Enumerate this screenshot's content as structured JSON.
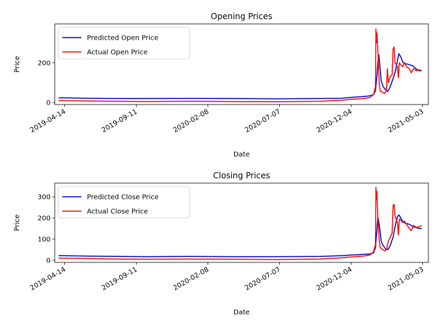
{
  "chart_data": [
    {
      "type": "line",
      "title": "Opening Prices",
      "xlabel": "Date",
      "ylabel": "Price",
      "x_ticks": [
        "2019-04-14",
        "2019-09-11",
        "2020-02-08",
        "2020-07-07",
        "2020-12-04",
        "2021-05-03"
      ],
      "y_ticks": [
        0,
        200
      ],
      "xlim": [
        "2019-03-24",
        "2021-05-15"
      ],
      "ylim": [
        -10,
        395
      ],
      "legend": "upper-left",
      "grid": false,
      "series": [
        {
          "name": "Predicted Open Price",
          "color": "#0000cc",
          "points": [
            [
              "2019-04-01",
              24
            ],
            [
              "2019-06-01",
              22
            ],
            [
              "2019-08-01",
              20
            ],
            [
              "2019-10-01",
              20
            ],
            [
              "2020-01-01",
              21
            ],
            [
              "2020-04-01",
              20
            ],
            [
              "2020-07-01",
              19
            ],
            [
              "2020-10-01",
              20
            ],
            [
              "2020-11-15",
              22
            ],
            [
              "2020-12-04",
              26
            ],
            [
              "2020-12-30",
              30
            ],
            [
              "2021-01-12",
              34
            ],
            [
              "2021-01-20",
              40
            ],
            [
              "2021-01-24",
              60
            ],
            [
              "2021-01-27",
              130
            ],
            [
              "2021-01-29",
              200
            ],
            [
              "2021-01-31",
              240
            ],
            [
              "2021-02-02",
              190
            ],
            [
              "2021-02-05",
              110
            ],
            [
              "2021-02-09",
              80
            ],
            [
              "2021-02-14",
              65
            ],
            [
              "2021-02-19",
              55
            ],
            [
              "2021-02-24",
              80
            ],
            [
              "2021-03-02",
              120
            ],
            [
              "2021-03-07",
              160
            ],
            [
              "2021-03-11",
              210
            ],
            [
              "2021-03-14",
              245
            ],
            [
              "2021-03-18",
              230
            ],
            [
              "2021-03-23",
              200
            ],
            [
              "2021-03-29",
              195
            ],
            [
              "2021-04-05",
              190
            ],
            [
              "2021-04-12",
              185
            ],
            [
              "2021-04-19",
              170
            ],
            [
              "2021-04-26",
              160
            ],
            [
              "2021-05-01",
              160
            ]
          ]
        },
        {
          "name": "Actual Open Price",
          "color": "#ff0000",
          "points": [
            [
              "2019-04-01",
              10
            ],
            [
              "2019-06-01",
              8
            ],
            [
              "2019-08-01",
              6
            ],
            [
              "2019-10-01",
              5
            ],
            [
              "2020-01-01",
              6
            ],
            [
              "2020-04-01",
              5
            ],
            [
              "2020-07-01",
              4
            ],
            [
              "2020-10-01",
              6
            ],
            [
              "2020-11-15",
              12
            ],
            [
              "2020-12-04",
              16
            ],
            [
              "2020-12-30",
              20
            ],
            [
              "2021-01-12",
              25
            ],
            [
              "2021-01-20",
              40
            ],
            [
              "2021-01-24",
              80
            ],
            [
              "2021-01-25",
              370
            ],
            [
              "2021-01-26",
              300
            ],
            [
              "2021-01-27",
              350
            ],
            [
              "2021-01-29",
              260
            ],
            [
              "2021-02-01",
              90
            ],
            [
              "2021-02-03",
              60
            ],
            [
              "2021-02-05",
              55
            ],
            [
              "2021-02-09",
              50
            ],
            [
              "2021-02-12",
              45
            ],
            [
              "2021-02-16",
              60
            ],
            [
              "2021-02-18",
              170
            ],
            [
              "2021-02-20",
              100
            ],
            [
              "2021-02-24",
              130
            ],
            [
              "2021-02-28",
              140
            ],
            [
              "2021-03-02",
              270
            ],
            [
              "2021-03-04",
              280
            ],
            [
              "2021-03-06",
              200
            ],
            [
              "2021-03-09",
              190
            ],
            [
              "2021-03-11",
              180
            ],
            [
              "2021-03-13",
              125
            ],
            [
              "2021-03-15",
              200
            ],
            [
              "2021-03-18",
              190
            ],
            [
              "2021-03-22",
              180
            ],
            [
              "2021-03-26",
              200
            ],
            [
              "2021-03-30",
              180
            ],
            [
              "2021-04-05",
              170
            ],
            [
              "2021-04-09",
              150
            ],
            [
              "2021-04-14",
              170
            ],
            [
              "2021-04-20",
              160
            ],
            [
              "2021-04-26",
              165
            ],
            [
              "2021-05-01",
              160
            ]
          ]
        }
      ]
    },
    {
      "type": "line",
      "title": "Closing Prices",
      "xlabel": "Date",
      "ylabel": "Price",
      "x_ticks": [
        "2019-04-14",
        "2019-09-11",
        "2020-02-08",
        "2020-07-07",
        "2020-12-04",
        "2021-05-03"
      ],
      "y_ticks": [
        0,
        100,
        200,
        300
      ],
      "xlim": [
        "2019-03-24",
        "2021-05-15"
      ],
      "ylim": [
        -10,
        365
      ],
      "legend": "upper-left",
      "grid": false,
      "series": [
        {
          "name": "Predicted Close Price",
          "color": "#0000cc",
          "points": [
            [
              "2019-04-01",
              22
            ],
            [
              "2019-06-01",
              20
            ],
            [
              "2019-08-01",
              18
            ],
            [
              "2019-10-01",
              17
            ],
            [
              "2020-01-01",
              18
            ],
            [
              "2020-04-01",
              17
            ],
            [
              "2020-07-01",
              17
            ],
            [
              "2020-10-01",
              18
            ],
            [
              "2020-11-15",
              22
            ],
            [
              "2020-12-04",
              25
            ],
            [
              "2020-12-30",
              28
            ],
            [
              "2021-01-12",
              30
            ],
            [
              "2021-01-20",
              35
            ],
            [
              "2021-01-24",
              60
            ],
            [
              "2021-01-27",
              140
            ],
            [
              "2021-01-29",
              205
            ],
            [
              "2021-01-31",
              180
            ],
            [
              "2021-02-02",
              150
            ],
            [
              "2021-02-05",
              90
            ],
            [
              "2021-02-09",
              70
            ],
            [
              "2021-02-14",
              55
            ],
            [
              "2021-02-19",
              50
            ],
            [
              "2021-02-24",
              70
            ],
            [
              "2021-03-02",
              110
            ],
            [
              "2021-03-07",
              170
            ],
            [
              "2021-03-11",
              205
            ],
            [
              "2021-03-14",
              215
            ],
            [
              "2021-03-18",
              200
            ],
            [
              "2021-03-23",
              180
            ],
            [
              "2021-03-29",
              175
            ],
            [
              "2021-04-05",
              170
            ],
            [
              "2021-04-12",
              160
            ],
            [
              "2021-04-19",
              155
            ],
            [
              "2021-04-26",
              150
            ],
            [
              "2021-05-01",
              150
            ]
          ]
        },
        {
          "name": "Actual Close Price",
          "color": "#ff0000",
          "points": [
            [
              "2019-04-01",
              10
            ],
            [
              "2019-06-01",
              8
            ],
            [
              "2019-08-01",
              6
            ],
            [
              "2019-10-01",
              5
            ],
            [
              "2020-01-01",
              6
            ],
            [
              "2020-04-01",
              5
            ],
            [
              "2020-07-01",
              4
            ],
            [
              "2020-10-01",
              6
            ],
            [
              "2020-11-15",
              12
            ],
            [
              "2020-12-04",
              16
            ],
            [
              "2020-12-30",
              20
            ],
            [
              "2021-01-12",
              25
            ],
            [
              "2021-01-20",
              40
            ],
            [
              "2021-01-24",
              75
            ],
            [
              "2021-01-25",
              345
            ],
            [
              "2021-01-26",
              290
            ],
            [
              "2021-01-27",
              325
            ],
            [
              "2021-01-29",
              200
            ],
            [
              "2021-02-01",
              90
            ],
            [
              "2021-02-03",
              60
            ],
            [
              "2021-02-05",
              55
            ],
            [
              "2021-02-09",
              50
            ],
            [
              "2021-02-12",
              45
            ],
            [
              "2021-02-16",
              50
            ],
            [
              "2021-02-20",
              90
            ],
            [
              "2021-02-24",
              110
            ],
            [
              "2021-02-28",
              130
            ],
            [
              "2021-03-02",
              260
            ],
            [
              "2021-03-04",
              265
            ],
            [
              "2021-03-06",
              210
            ],
            [
              "2021-03-09",
              190
            ],
            [
              "2021-03-11",
              180
            ],
            [
              "2021-03-13",
              120
            ],
            [
              "2021-03-15",
              195
            ],
            [
              "2021-03-18",
              190
            ],
            [
              "2021-03-22",
              180
            ],
            [
              "2021-03-26",
              185
            ],
            [
              "2021-03-30",
              170
            ],
            [
              "2021-04-05",
              150
            ],
            [
              "2021-04-09",
              140
            ],
            [
              "2021-04-14",
              165
            ],
            [
              "2021-04-20",
              155
            ],
            [
              "2021-04-26",
              160
            ],
            [
              "2021-05-01",
              165
            ]
          ]
        }
      ]
    }
  ]
}
